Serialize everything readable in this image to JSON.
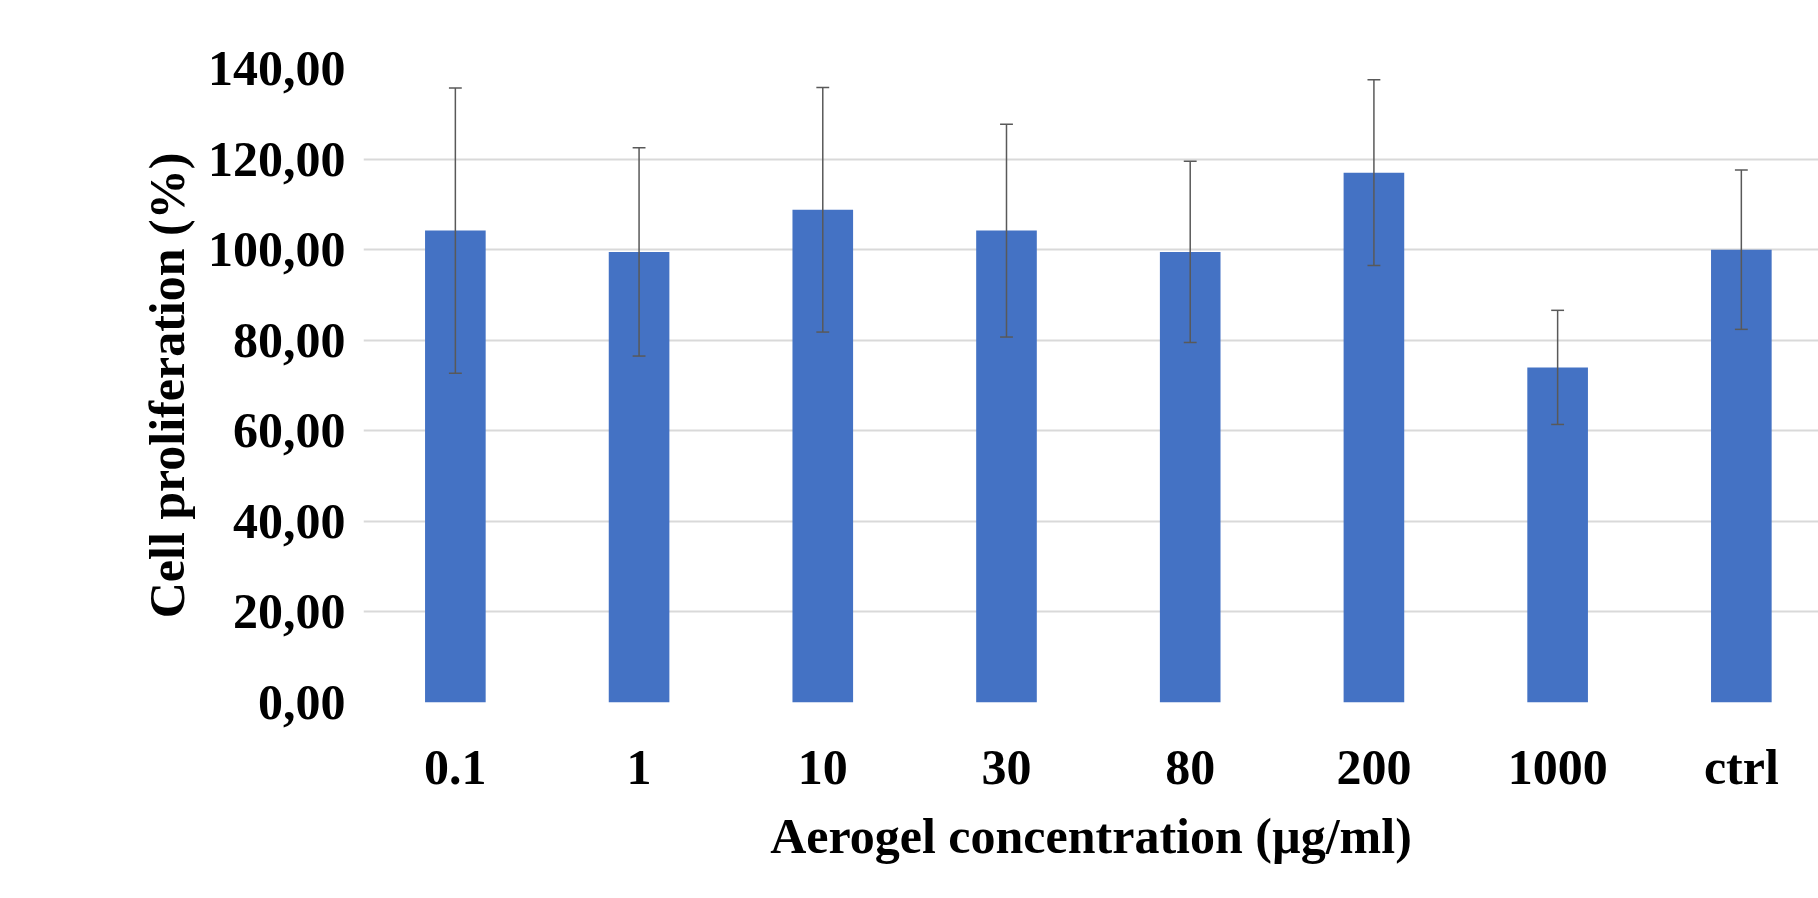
{
  "chart_data": {
    "type": "bar",
    "xlabel": "Aerogel concentration (µg/ml)",
    "ylabel": "Cell proliferation (%)",
    "categories": [
      "0.1",
      "1",
      "10",
      "30",
      "80",
      "200",
      "1000",
      "ctrl"
    ],
    "values": [
      104.2,
      99.5,
      108.8,
      104.2,
      99.5,
      117.0,
      74.0,
      100.0
    ],
    "errors": [
      31.5,
      23,
      27,
      23.5,
      20,
      20.5,
      12.6,
      17.6
    ],
    "color": "#4472c4",
    "ylim": [
      0,
      140
    ],
    "yticks": [
      {
        "value": 0,
        "label": "0,00"
      },
      {
        "value": 20,
        "label": "20,00"
      },
      {
        "value": 40,
        "label": "40,00"
      },
      {
        "value": 60,
        "label": "60,00"
      },
      {
        "value": 80,
        "label": "80,00"
      },
      {
        "value": 100,
        "label": "100,00"
      },
      {
        "value": 120,
        "label": "120,00"
      },
      {
        "value": 140,
        "label": "140,00"
      }
    ],
    "grid": "y"
  }
}
